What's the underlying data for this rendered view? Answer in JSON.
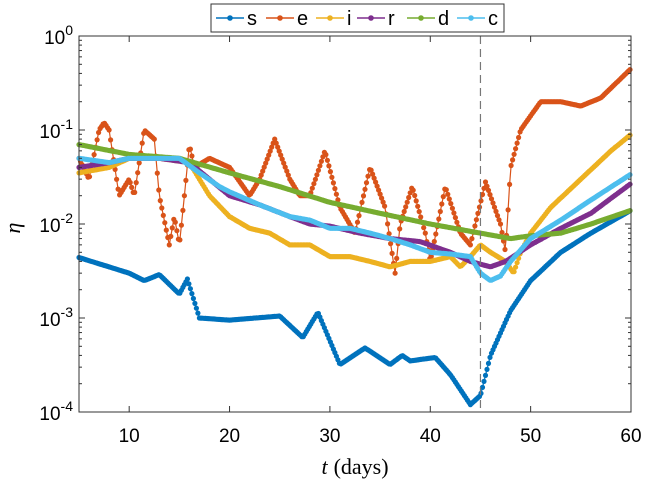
{
  "chart_data": {
    "type": "line",
    "title": "",
    "xlabel_var": "t",
    "xlabel_unit": "(days)",
    "ylabel": "η",
    "xlim": [
      5,
      60
    ],
    "ylim": [
      0.0001,
      1
    ],
    "yscale": "log",
    "x_ticks": [
      "10",
      "20",
      "30",
      "40",
      "50",
      "60"
    ],
    "y_ticks": [
      {
        "base": "10",
        "exp": "0"
      },
      {
        "base": "10",
        "exp": "-1"
      },
      {
        "base": "10",
        "exp": "-2"
      },
      {
        "base": "10",
        "exp": "-3"
      },
      {
        "base": "10",
        "exp": "-4"
      }
    ],
    "vertical_line_x": 45,
    "legend_placement": "top-outside",
    "series": [
      {
        "name": "s",
        "color": "#0072BD",
        "points": [
          [
            5,
            0.0044
          ],
          [
            8,
            0.0035
          ],
          [
            10,
            0.003
          ],
          [
            11.5,
            0.0025
          ],
          [
            13,
            0.0029
          ],
          [
            15,
            0.0018
          ],
          [
            15.8,
            0.0026
          ],
          [
            17,
            0.001
          ],
          [
            20,
            0.00095
          ],
          [
            25,
            0.00105
          ],
          [
            27.3,
            0.00062
          ],
          [
            28.8,
            0.00115
          ],
          [
            31,
            0.00032
          ],
          [
            33.5,
            0.00048
          ],
          [
            36,
            0.00032
          ],
          [
            37.2,
            0.0004
          ],
          [
            38,
            0.00035
          ],
          [
            40.5,
            0.00038
          ],
          [
            42,
            0.00025
          ],
          [
            44,
            0.00012
          ],
          [
            45,
            0.00015
          ],
          [
            46,
            0.0004
          ],
          [
            48,
            0.0012
          ],
          [
            50,
            0.0025
          ],
          [
            53,
            0.005
          ],
          [
            56,
            0.008
          ],
          [
            60,
            0.014
          ]
        ]
      },
      {
        "name": "e",
        "color": "#D95319",
        "points": [
          [
            5,
            0.05
          ],
          [
            6,
            0.03
          ],
          [
            7,
            0.1
          ],
          [
            7.5,
            0.12
          ],
          [
            8,
            0.1
          ],
          [
            9,
            0.02
          ],
          [
            10,
            0.03
          ],
          [
            10.5,
            0.02
          ],
          [
            11.5,
            0.1
          ],
          [
            12.5,
            0.08
          ],
          [
            13,
            0.02
          ],
          [
            14,
            0.006
          ],
          [
            14.5,
            0.012
          ],
          [
            15,
            0.006
          ],
          [
            15.5,
            0.02
          ],
          [
            16,
            0.07
          ],
          [
            16.5,
            0.04
          ],
          [
            18,
            0.05
          ],
          [
            20,
            0.04
          ],
          [
            22,
            0.02
          ],
          [
            23,
            0.03
          ],
          [
            24.5,
            0.08
          ],
          [
            26,
            0.03
          ],
          [
            27,
            0.02
          ],
          [
            28,
            0.02
          ],
          [
            29.5,
            0.06
          ],
          [
            31,
            0.015
          ],
          [
            32.5,
            0.008
          ],
          [
            34,
            0.04
          ],
          [
            35.5,
            0.015
          ],
          [
            36.5,
            0.003
          ],
          [
            37,
            0.01
          ],
          [
            38.2,
            0.025
          ],
          [
            39.5,
            0.008
          ],
          [
            40,
            0.004
          ],
          [
            41.5,
            0.025
          ],
          [
            43,
            0.008
          ],
          [
            44,
            0.006
          ],
          [
            45.5,
            0.028
          ],
          [
            47,
            0.01
          ],
          [
            47.5,
            0.005
          ],
          [
            48,
            0.04
          ],
          [
            49,
            0.1
          ],
          [
            51,
            0.2
          ],
          [
            53,
            0.2
          ],
          [
            55,
            0.18
          ],
          [
            57,
            0.22
          ],
          [
            60,
            0.45
          ]
        ]
      },
      {
        "name": "i",
        "color": "#EDB120",
        "points": [
          [
            5,
            0.035
          ],
          [
            8,
            0.04
          ],
          [
            10,
            0.05
          ],
          [
            13,
            0.05
          ],
          [
            16,
            0.045
          ],
          [
            18,
            0.02
          ],
          [
            20,
            0.012
          ],
          [
            22,
            0.009
          ],
          [
            24,
            0.008
          ],
          [
            26,
            0.006
          ],
          [
            28,
            0.006
          ],
          [
            30,
            0.0045
          ],
          [
            32,
            0.0045
          ],
          [
            34,
            0.004
          ],
          [
            36,
            0.0035
          ],
          [
            38,
            0.004
          ],
          [
            40,
            0.004
          ],
          [
            42,
            0.0045
          ],
          [
            43,
            0.0035
          ],
          [
            44,
            0.0045
          ],
          [
            45,
            0.006
          ],
          [
            46,
            0.005
          ],
          [
            47.5,
            0.004
          ],
          [
            48.3,
            0.003
          ],
          [
            49,
            0.005
          ],
          [
            50,
            0.008
          ],
          [
            52,
            0.015
          ],
          [
            55,
            0.03
          ],
          [
            58,
            0.06
          ],
          [
            60,
            0.09
          ]
        ]
      },
      {
        "name": "r",
        "color": "#7E2F8E",
        "points": [
          [
            5,
            0.04
          ],
          [
            8,
            0.045
          ],
          [
            10,
            0.05
          ],
          [
            13,
            0.05
          ],
          [
            16,
            0.045
          ],
          [
            18,
            0.03
          ],
          [
            20,
            0.02
          ],
          [
            23,
            0.016
          ],
          [
            26,
            0.012
          ],
          [
            28,
            0.01
          ],
          [
            30,
            0.0095
          ],
          [
            33,
            0.008
          ],
          [
            36,
            0.007
          ],
          [
            39,
            0.0065
          ],
          [
            42,
            0.005
          ],
          [
            44,
            0.004
          ],
          [
            46,
            0.0035
          ],
          [
            47.5,
            0.004
          ],
          [
            50,
            0.006
          ],
          [
            53,
            0.009
          ],
          [
            56,
            0.013
          ],
          [
            60,
            0.027
          ]
        ]
      },
      {
        "name": "d",
        "color": "#77AC30",
        "points": [
          [
            5,
            0.07
          ],
          [
            10,
            0.055
          ],
          [
            15,
            0.05
          ],
          [
            20,
            0.035
          ],
          [
            25,
            0.025
          ],
          [
            30,
            0.017
          ],
          [
            35,
            0.013
          ],
          [
            40,
            0.01
          ],
          [
            45,
            0.008
          ],
          [
            48,
            0.007
          ],
          [
            50,
            0.0075
          ],
          [
            53,
            0.008
          ],
          [
            56,
            0.01
          ],
          [
            60,
            0.014
          ]
        ]
      },
      {
        "name": "c",
        "color": "#4DBEEE",
        "points": [
          [
            5,
            0.05
          ],
          [
            8,
            0.045
          ],
          [
            10,
            0.05
          ],
          [
            13,
            0.05
          ],
          [
            15,
            0.05
          ],
          [
            17,
            0.035
          ],
          [
            19,
            0.025
          ],
          [
            20,
            0.022
          ],
          [
            23,
            0.016
          ],
          [
            26,
            0.012
          ],
          [
            28,
            0.011
          ],
          [
            30,
            0.009
          ],
          [
            32,
            0.009
          ],
          [
            34,
            0.008
          ],
          [
            36,
            0.007
          ],
          [
            38,
            0.006
          ],
          [
            40,
            0.005
          ],
          [
            42,
            0.0048
          ],
          [
            44,
            0.0045
          ],
          [
            45,
            0.003
          ],
          [
            46,
            0.0025
          ],
          [
            47,
            0.0028
          ],
          [
            48,
            0.004
          ],
          [
            50,
            0.007
          ],
          [
            53,
            0.011
          ],
          [
            56,
            0.018
          ],
          [
            60,
            0.034
          ]
        ]
      }
    ]
  }
}
